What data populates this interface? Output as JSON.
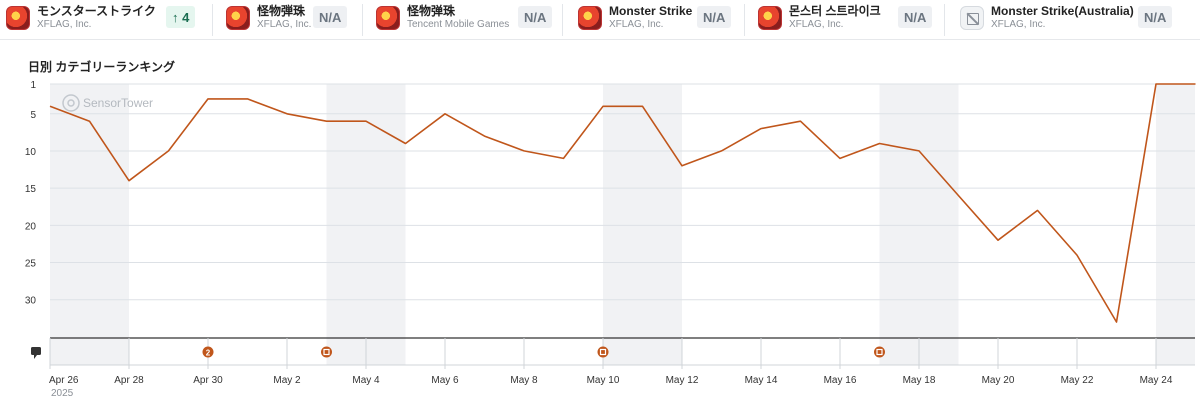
{
  "apps": [
    {
      "name": "モンスターストライク",
      "publisher": "XFLAG, Inc.",
      "badge": "↑ 4",
      "badge_type": "up",
      "icon": "monster-strike-icon"
    },
    {
      "name": "怪物弾珠",
      "publisher": "XFLAG, Inc.",
      "badge": "N/A",
      "badge_type": "na",
      "icon": "monster-strike-icon"
    },
    {
      "name": "怪物弹珠",
      "publisher": "Tencent Mobile Games",
      "badge": "N/A",
      "badge_type": "na",
      "icon": "monster-strike-icon"
    },
    {
      "name": "Monster Strike",
      "publisher": "XFLAG, Inc.",
      "badge": "N/A",
      "badge_type": "na",
      "icon": "monster-strike-icon"
    },
    {
      "name": "몬스터 스트라이크",
      "publisher": "XFLAG, Inc.",
      "badge": "N/A",
      "badge_type": "na",
      "icon": "monster-strike-icon"
    },
    {
      "name": "Monster Strike(Australia)",
      "publisher": "XFLAG, Inc.",
      "badge": "N/A",
      "badge_type": "na",
      "icon": "image-placeholder-icon"
    }
  ],
  "section_title": "日別 カテゴリーランキング",
  "watermark": "SensorTower",
  "colors": {
    "line": "#c0561b",
    "grid": "#dde1e6",
    "weekend_band": "#f1f2f4",
    "event_marker": "#c0561b"
  },
  "chart_data": {
    "type": "line",
    "title": "",
    "ylabel": "",
    "y_inverted": true,
    "ylim": [
      1,
      33
    ],
    "y_ticks": [
      1,
      5,
      10,
      15,
      20,
      25,
      30
    ],
    "x": [
      "2025-04-26",
      "2025-04-27",
      "2025-04-28",
      "2025-04-29",
      "2025-04-30",
      "2025-05-01",
      "2025-05-02",
      "2025-05-03",
      "2025-05-04",
      "2025-05-05",
      "2025-05-06",
      "2025-05-07",
      "2025-05-08",
      "2025-05-09",
      "2025-05-10",
      "2025-05-11",
      "2025-05-12",
      "2025-05-13",
      "2025-05-14",
      "2025-05-15",
      "2025-05-16",
      "2025-05-17",
      "2025-05-18",
      "2025-05-19",
      "2025-05-20",
      "2025-05-21",
      "2025-05-22",
      "2025-05-23",
      "2025-05-24",
      "2025-05-25"
    ],
    "x_tick_labels": [
      "Apr 26",
      "Apr 28",
      "Apr 30",
      "May 2",
      "May 4",
      "May 6",
      "May 8",
      "May 10",
      "May 12",
      "May 14",
      "May 16",
      "May 18",
      "May 20",
      "May 22",
      "May 24"
    ],
    "x_year_label": "2025",
    "series": [
      {
        "values": [
          4,
          6,
          14,
          10,
          3,
          3,
          5,
          6,
          6,
          9,
          5,
          8,
          10,
          11,
          4,
          4,
          12,
          10,
          7,
          6,
          11,
          9,
          10,
          16,
          22,
          18,
          24,
          33,
          1,
          1
        ]
      }
    ],
    "weekends": [
      [
        "2025-04-26",
        "2025-04-27"
      ],
      [
        "2025-05-03",
        "2025-05-04"
      ],
      [
        "2025-05-10",
        "2025-05-11"
      ],
      [
        "2025-05-17",
        "2025-05-18"
      ],
      [
        "2025-05-24",
        "2025-05-25"
      ]
    ],
    "events": [
      {
        "date": "2025-04-30",
        "label": "2"
      },
      {
        "date": "2025-05-03",
        "label": ""
      },
      {
        "date": "2025-05-10",
        "label": ""
      },
      {
        "date": "2025-05-17",
        "label": ""
      }
    ],
    "grid": true
  }
}
